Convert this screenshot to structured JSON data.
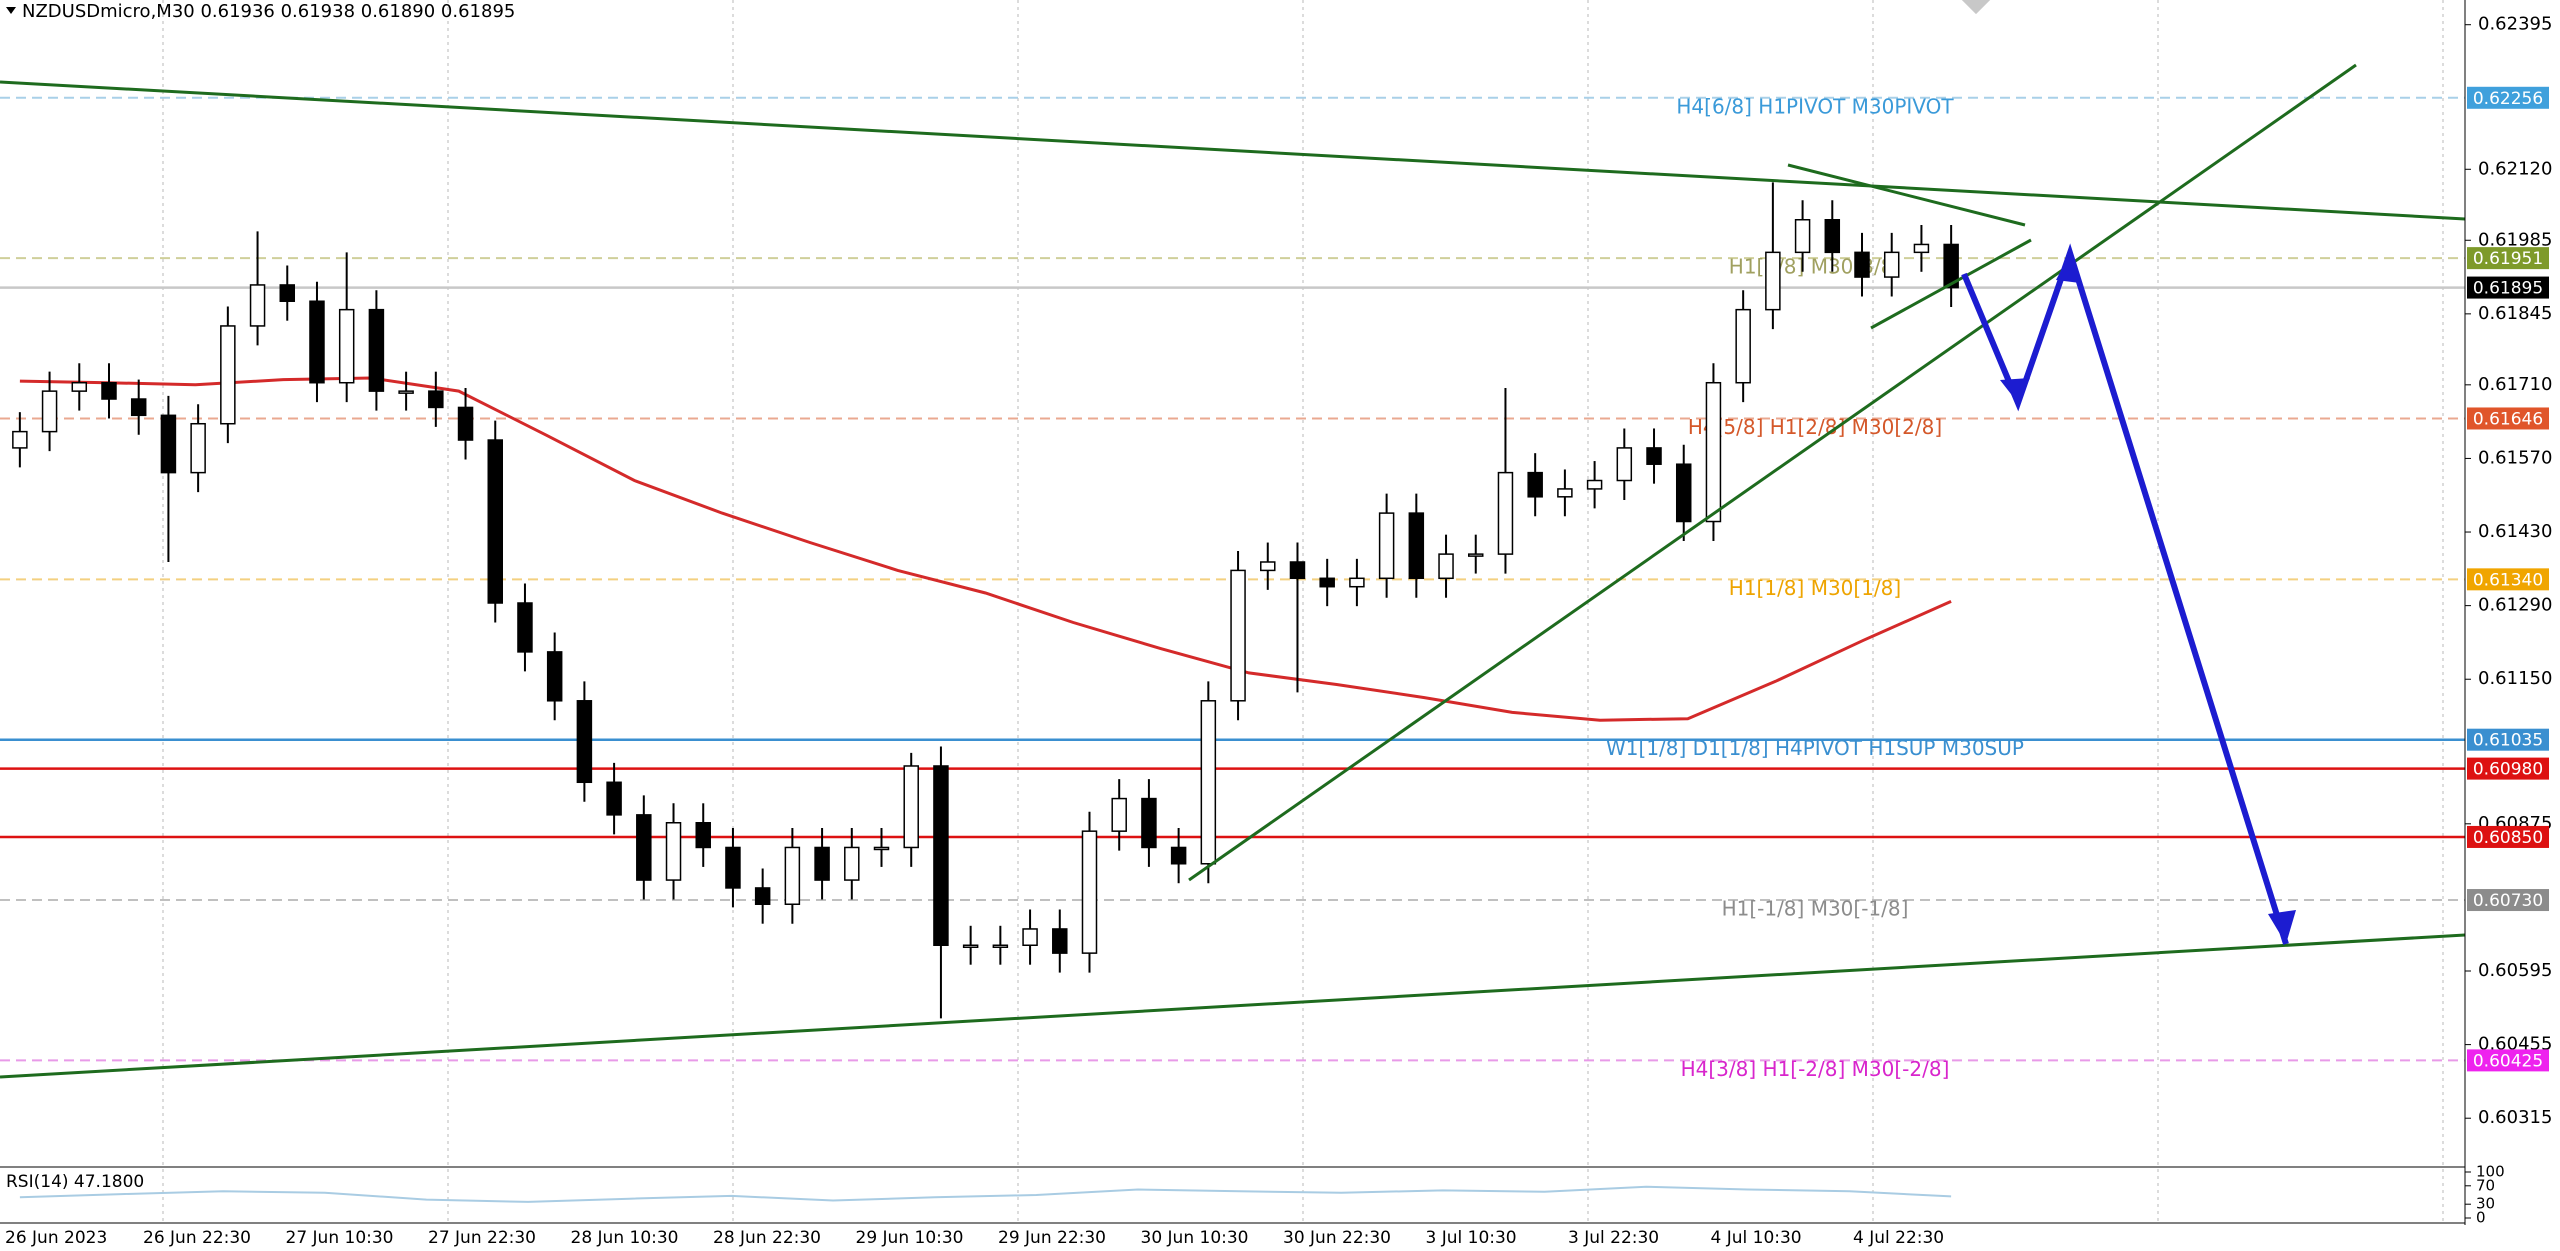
{
  "chart_data": {
    "type": "candlestick",
    "title": "NZDUSDmicro,M30  0.61936 0.61938 0.61890 0.61895",
    "time_labels": [
      "26 Jun 2023",
      "26 Jun 22:30",
      "27 Jun 10:30",
      "27 Jun 22:30",
      "28 Jun 10:30",
      "28 Jun 22:30",
      "29 Jun 10:30",
      "29 Jun 22:30",
      "30 Jun 10:30",
      "30 Jun 22:30",
      "3 Jul 10:30",
      "3 Jul 22:30",
      "4 Jul 10:30",
      "4 Jul 22:30"
    ],
    "open": [
      0.6159,
      0.61621,
      0.61698,
      0.61714,
      0.61683,
      0.61652,
      0.61543,
      0.61636,
      0.61822,
      0.619,
      0.61869,
      0.61714,
      0.61853,
      0.61698,
      0.61698,
      0.61667,
      0.61605,
      0.61295,
      0.61202,
      0.61109,
      0.60954,
      0.60892,
      0.60768,
      0.60877,
      0.6083,
      0.60753,
      0.60722,
      0.6083,
      0.60768,
      0.6083,
      0.6083,
      0.60985,
      0.60644,
      0.60644,
      0.60644,
      0.60675,
      0.60629,
      0.60861,
      0.60923,
      0.6083,
      0.60799,
      0.61109,
      0.61357,
      0.61373,
      0.61342,
      0.61326,
      0.61342,
      0.61466,
      0.61342,
      0.61388,
      0.61388,
      0.61543,
      0.61497,
      0.61512,
      0.61528,
      0.6159,
      0.61559,
      0.6145,
      0.61714,
      0.61853,
      0.61962,
      0.62024,
      0.61962,
      0.61915,
      0.61962,
      0.61977
    ],
    "high": [
      0.61658,
      0.61735,
      0.61751,
      0.61751,
      0.6172,
      0.61689,
      0.61673,
      0.61859,
      0.62002,
      0.61937,
      0.61906,
      0.61962,
      0.6189,
      0.61735,
      0.61735,
      0.61704,
      0.61642,
      0.61332,
      0.61239,
      0.61146,
      0.60991,
      0.60929,
      0.60914,
      0.60914,
      0.60867,
      0.6079,
      0.60867,
      0.60867,
      0.60867,
      0.60867,
      0.6101,
      0.61022,
      0.60681,
      0.60681,
      0.60712,
      0.60712,
      0.60898,
      0.6096,
      0.6096,
      0.60867,
      0.61146,
      0.61394,
      0.6141,
      0.6141,
      0.61379,
      0.61379,
      0.61503,
      0.61503,
      0.61425,
      0.61425,
      0.61704,
      0.6158,
      0.61549,
      0.61565,
      0.61627,
      0.61627,
      0.61596,
      0.61751,
      0.6189,
      0.62095,
      0.62061,
      0.62061,
      0.61999,
      0.61999,
      0.62014,
      0.62014
    ],
    "low": [
      0.61553,
      0.61584,
      0.61661,
      0.61646,
      0.61615,
      0.61373,
      0.61506,
      0.61599,
      0.61785,
      0.61832,
      0.61677,
      0.61677,
      0.61661,
      0.61661,
      0.6163,
      0.61568,
      0.61258,
      0.61165,
      0.61072,
      0.60917,
      0.60855,
      0.60731,
      0.60731,
      0.60793,
      0.60716,
      0.60685,
      0.60685,
      0.60731,
      0.60731,
      0.60793,
      0.60793,
      0.60505,
      0.60607,
      0.60607,
      0.60607,
      0.60592,
      0.60592,
      0.60824,
      0.60793,
      0.60762,
      0.60762,
      0.61072,
      0.6132,
      0.61125,
      0.61289,
      0.61289,
      0.61305,
      0.61305,
      0.61305,
      0.61351,
      0.61351,
      0.6146,
      0.6146,
      0.61475,
      0.61491,
      0.61522,
      0.61413,
      0.61413,
      0.61677,
      0.61816,
      0.61925,
      0.61925,
      0.61878,
      0.61878,
      0.61925,
      0.61858
    ],
    "close": [
      0.61621,
      0.61698,
      0.61714,
      0.61683,
      0.61652,
      0.61543,
      0.61636,
      0.61822,
      0.619,
      0.61869,
      0.61714,
      0.61853,
      0.61698,
      0.61698,
      0.61667,
      0.61605,
      0.61295,
      0.61202,
      0.61109,
      0.60954,
      0.60892,
      0.60768,
      0.60877,
      0.6083,
      0.60753,
      0.60722,
      0.6083,
      0.60768,
      0.6083,
      0.6083,
      0.60985,
      0.60644,
      0.60644,
      0.60644,
      0.60675,
      0.60629,
      0.60861,
      0.60923,
      0.6083,
      0.60799,
      0.61109,
      0.61357,
      0.61373,
      0.61342,
      0.61326,
      0.61342,
      0.61466,
      0.61342,
      0.61388,
      0.61388,
      0.61543,
      0.61497,
      0.61512,
      0.61528,
      0.6159,
      0.61559,
      0.6145,
      0.61714,
      0.61853,
      0.61962,
      0.62024,
      0.61962,
      0.61915,
      0.61962,
      0.61977,
      0.61895
    ],
    "up_color": "#ffffff",
    "down_color": "#000000",
    "ma": {
      "color": "#d42a2a",
      "values": [
        0.61717,
        0.61714,
        0.6171,
        0.6172,
        0.61723,
        0.61698,
        0.61614,
        0.61528,
        0.61466,
        0.6141,
        0.61357,
        0.61314,
        0.61258,
        0.61208,
        0.61162,
        0.6114,
        0.61115,
        0.61087,
        0.61072,
        0.61075,
        0.61146,
        0.61224,
        0.61298
      ]
    },
    "ylim": [
      0.60226,
      0.62442
    ],
    "yticks": [
      0.62395,
      {
        "value": 0.6212,
        "label": "0.62120"
      },
      0.61985,
      0.61845,
      {
        "value": 0.6171,
        "label": "0.61710"
      },
      {
        "value": 0.6157,
        "label": "0.61570"
      },
      {
        "value": 0.6143,
        "label": "0.61430"
      },
      {
        "value": 0.6129,
        "label": "0.61290"
      },
      {
        "value": 0.6115,
        "label": "0.61150"
      },
      0.60875,
      0.60595,
      0.60455,
      0.60315
    ],
    "grid": true,
    "levels": [
      {
        "label": "H4[6/8] H1PIVOT M30PIVOT",
        "value": 0.62256,
        "color": "#a9d0e8",
        "tag_color": "#3fa0dc",
        "label_color": "#3a9ad9",
        "dash": true
      },
      {
        "label": "H1[3/8] M30[3/8]",
        "value": 0.61951,
        "color": "#cfcf9a",
        "tag_color": "#7e9a2a",
        "label_color": "#a0a060",
        "dash": true
      },
      {
        "value": 0.61895,
        "color": "#c8c8c8",
        "tag_color": "#000000",
        "dash": false
      },
      {
        "label": "H4[5/8] H1[2/8] M30[2/8]",
        "value": 0.61646,
        "color": "#eaa890",
        "tag_color": "#e0552a",
        "label_color": "#d4582a",
        "dash": true
      },
      {
        "label": "H1[1/8] M30[1/8]",
        "value": 0.6134,
        "value_label": "0.61340",
        "color": "#f3d080",
        "tag_color": "#f0a500",
        "label_color": "#eea400",
        "dash": true
      },
      {
        "label": "W1[1/8] D1[1/8] H4PIVOT H1SUP M30SUP",
        "value": 0.61035,
        "color": "#3a8fd0",
        "tag_color": "#3a8fd0",
        "label_color": "#3a8fd0",
        "dash": false
      },
      {
        "value": 0.6098,
        "value_label": "0.60980",
        "color": "#dd1111",
        "tag_color": "#dd1111",
        "dash": false
      },
      {
        "value": 0.6085,
        "value_label": "0.60850",
        "color": "#dd1111",
        "tag_color": "#dd1111",
        "dash": false
      },
      {
        "label": "H1[-1/8] M30[-1/8]",
        "value": 0.6073,
        "value_label": "0.60730",
        "color": "#c0c0c0",
        "tag_color": "#8c8c8c",
        "label_color": "#8c8c8c",
        "dash": true
      },
      {
        "label": "H4[3/8] H1[-2/8] M30[-2/8]",
        "value": 0.60425,
        "color": "#e89ae8",
        "tag_color": "#ee22ee",
        "label_color": "#d825cc",
        "dash": true
      }
    ],
    "rsi": {
      "label": "RSI(14) 47.1800",
      "color": "#a9cce3",
      "ylim": [
        0,
        100
      ],
      "yticks": [
        100,
        70,
        30,
        0
      ],
      "values": [
        45,
        52,
        58,
        55,
        40,
        35,
        42,
        48,
        38,
        45,
        50,
        62,
        58,
        55,
        60,
        57,
        68,
        62,
        58,
        47
      ]
    }
  }
}
